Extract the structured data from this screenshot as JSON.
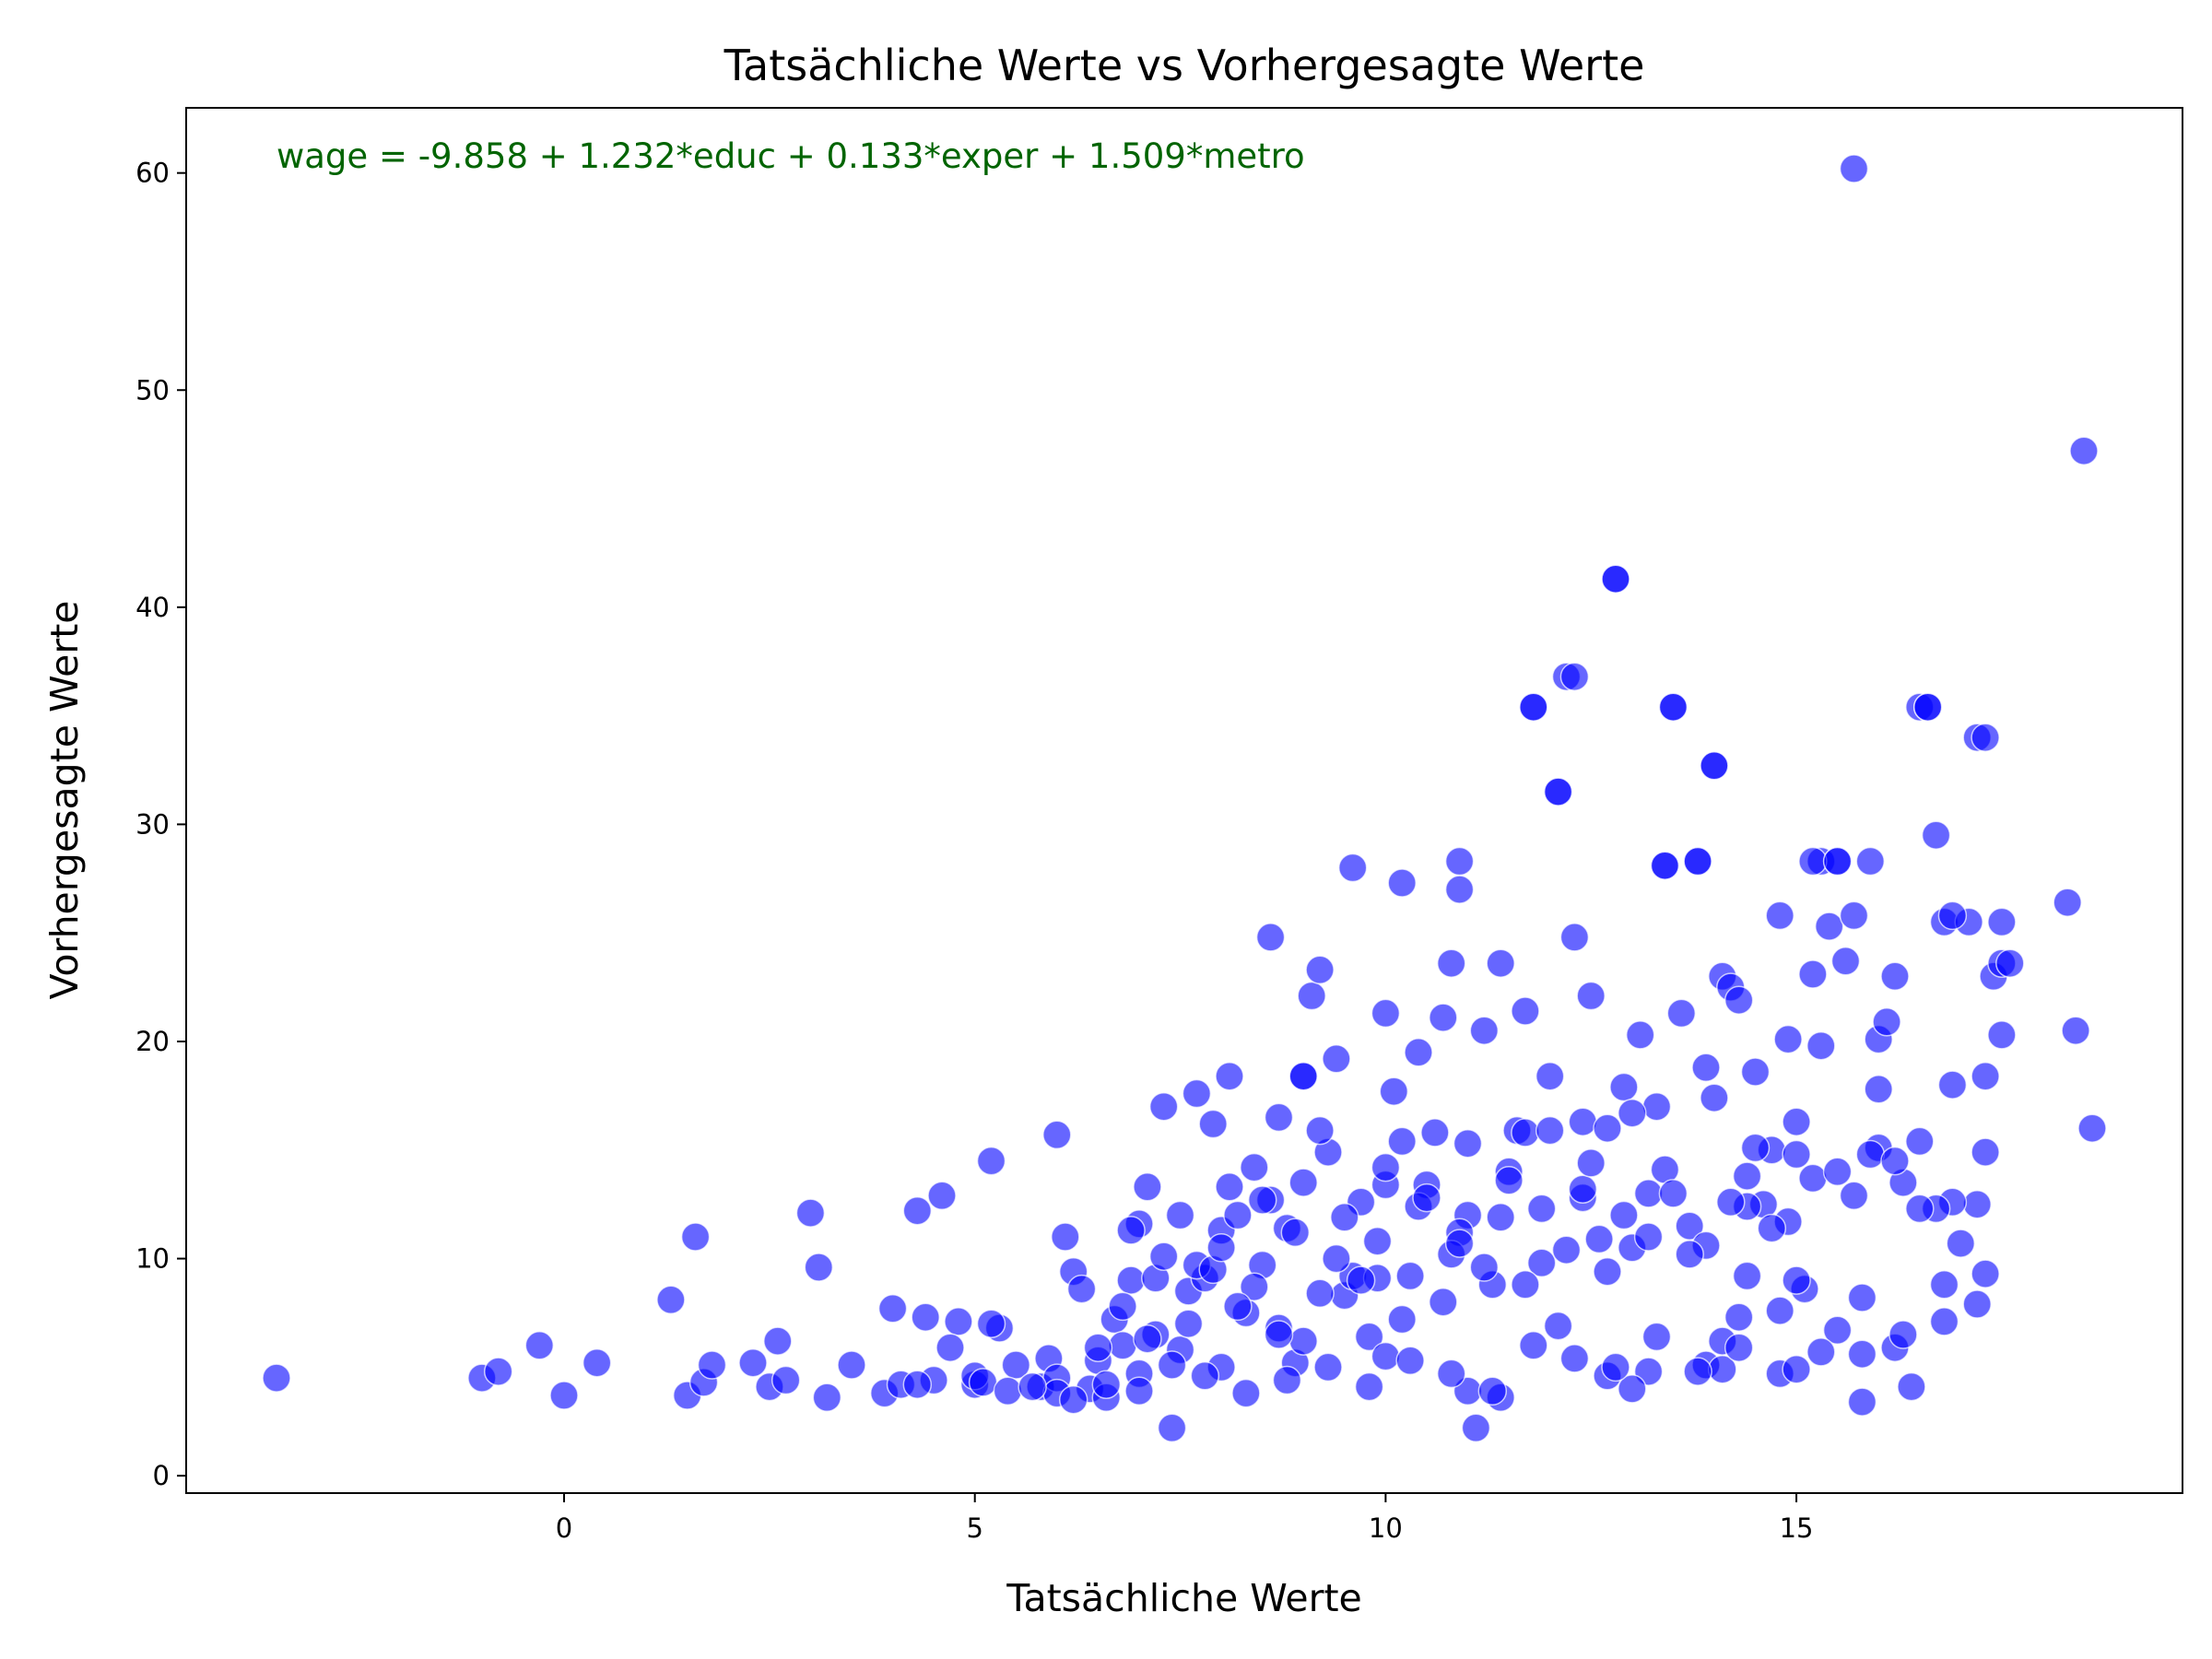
{
  "chart_data": {
    "type": "scatter",
    "title": "Tatsächliche Werte vs Vorhergesagte Werte",
    "xlabel": "Tatsächliche Werte",
    "ylabel": "Vorhergesagte Werte",
    "annotation": "wage = -9.858 + 1.232*educ + 0.133*exper + 1.509*metro",
    "annotation_color": "#006400",
    "marker_color": "#0000ff",
    "marker_opacity": 0.6,
    "xlim": [
      -4.6,
      19.7
    ],
    "ylim": [
      -0.8,
      63
    ],
    "xticks": [
      0,
      5,
      10,
      15
    ],
    "yticks": [
      0,
      10,
      20,
      30,
      40,
      50,
      60
    ],
    "grid": false,
    "legend": "none",
    "x": [
      -3.5,
      -1.0,
      -0.8,
      -0.3,
      0.0,
      0.4,
      1.3,
      1.5,
      1.6,
      1.7,
      1.8,
      2.3,
      2.5,
      2.6,
      2.7,
      3.0,
      3.1,
      3.2,
      3.5,
      3.9,
      4.0,
      4.1,
      4.3,
      4.4,
      4.5,
      4.6,
      4.8,
      5.0,
      5.2,
      5.3,
      5.5,
      5.8,
      6.0,
      6.1,
      6.2,
      6.3,
      6.4,
      6.5,
      6.6,
      6.7,
      6.8,
      6.9,
      7.0,
      7.1,
      7.2,
      7.3,
      7.4,
      7.5,
      7.6,
      7.7,
      7.8,
      7.9,
      8.0,
      8.1,
      8.2,
      8.3,
      8.4,
      8.5,
      8.6,
      8.7,
      8.8,
      8.9,
      9.0,
      9.1,
      9.2,
      9.3,
      9.4,
      9.5,
      9.6,
      9.7,
      9.8,
      9.9,
      10.0,
      10.1,
      10.2,
      10.3,
      10.4,
      10.5,
      10.6,
      10.7,
      10.8,
      10.9,
      11.0,
      11.1,
      11.2,
      11.3,
      11.4,
      11.5,
      11.6,
      11.7,
      11.8,
      11.9,
      12.0,
      12.1,
      12.2,
      12.3,
      12.4,
      12.5,
      12.6,
      12.7,
      12.8,
      12.9,
      13.0,
      13.1,
      13.2,
      13.3,
      13.4,
      13.5,
      13.6,
      13.7,
      13.8,
      13.9,
      14.0,
      14.1,
      14.2,
      14.3,
      14.4,
      14.5,
      14.6,
      14.7,
      14.8,
      14.9,
      15.0,
      15.1,
      15.2,
      15.3,
      15.4,
      15.5,
      15.6,
      15.7,
      15.8,
      15.9,
      16.0,
      16.1,
      16.2,
      16.3,
      16.5,
      16.6,
      16.7,
      16.8,
      16.9,
      17.0,
      17.1,
      17.2,
      17.3,
      17.4,
      17.5,
      18.3,
      18.4,
      18.6,
      18.5,
      15.7,
      12.8,
      12.3,
      11.8,
      13.5,
      14.0,
      16.6,
      17.3,
      12.1,
      13.4,
      13.8,
      15.2,
      15.5,
      15.3,
      16.9,
      17.5,
      17.2,
      16.0,
      9.6,
      10.0,
      10.2,
      10.9,
      10.8,
      10.9,
      8.7,
      9.0,
      9.2,
      7.2,
      7.0,
      5.2,
      4.7,
      4.3,
      5.9,
      6.0,
      8.6,
      8.1,
      7.7,
      11.4,
      11.7,
      12.4,
      12.7,
      13.2,
      13.9,
      14.1,
      14.3,
      14.8,
      15.0,
      15.8,
      16.2,
      16.4,
      16.8,
      16.9,
      17.6,
      17.5,
      17.2,
      17.3,
      16.7,
      16.5,
      15.9,
      15.5,
      15.0,
      14.4,
      14.1,
      13.0,
      12.1,
      11.0,
      10.0,
      9.0,
      8.0,
      7.0,
      6.0,
      5.0,
      5.1,
      5.4,
      5.7,
      6.2,
      6.6,
      7.4,
      7.8,
      8.3,
      8.8,
      9.3,
      9.8,
      10.3,
      10.8,
      11.3,
      11.8,
      12.3,
      12.8,
      13.3,
      13.8,
      14.3,
      14.8,
      15.3,
      15.8,
      16.3,
      16.8,
      17.3,
      6.8,
      7.3,
      7.9,
      8.4,
      8.9,
      9.4,
      9.9,
      10.4,
      10.9,
      11.4,
      11.9,
      12.4,
      12.9,
      13.4,
      13.9,
      14.4,
      14.9,
      6.5,
      7.1,
      7.6,
      8.2,
      8.7,
      9.2,
      9.7,
      10.2,
      10.7,
      11.2,
      11.7,
      12.2,
      12.7,
      13.2,
      13.7,
      14.2,
      14.7,
      15.2,
      15.7,
      16.2,
      6.9,
      7.5,
      8.0,
      8.5,
      9.0,
      9.5,
      10.0,
      10.5,
      11.0,
      11.5,
      12.0,
      12.5,
      13.0,
      13.5,
      14.0,
      14.5,
      15.0,
      15.5,
      16.0,
      16.5
    ],
    "y": [
      4.5,
      4.5,
      4.8,
      6.0,
      3.7,
      5.2,
      8.1,
      3.7,
      11.0,
      4.3,
      5.1,
      5.2,
      4.1,
      6.2,
      4.4,
      12.1,
      9.6,
      3.6,
      5.1,
      3.8,
      7.7,
      4.2,
      12.2,
      7.3,
      4.4,
      12.9,
      7.1,
      4.2,
      14.5,
      6.8,
      5.1,
      4.1,
      15.7,
      11.0,
      9.4,
      8.6,
      4.0,
      5.3,
      3.6,
      7.2,
      6.0,
      9.0,
      4.7,
      13.3,
      6.5,
      17.0,
      2.2,
      5.8,
      8.5,
      17.6,
      9.1,
      16.2,
      11.3,
      18.4,
      12.0,
      7.5,
      14.2,
      9.7,
      24.8,
      6.8,
      11.4,
      5.2,
      18.4,
      22.1,
      23.3,
      14.9,
      19.2,
      8.3,
      28.0,
      12.6,
      6.4,
      10.8,
      21.3,
      17.7,
      27.3,
      9.2,
      19.5,
      13.4,
      15.8,
      21.1,
      23.6,
      28.3,
      12.0,
      2.2,
      20.5,
      8.8,
      23.6,
      14.0,
      15.9,
      21.4,
      35.4,
      12.3,
      18.4,
      31.5,
      36.8,
      24.8,
      16.3,
      22.1,
      10.9,
      16.0,
      41.3,
      17.9,
      10.5,
      20.3,
      13.0,
      17.0,
      28.1,
      35.4,
      21.3,
      11.5,
      28.3,
      18.8,
      32.7,
      23.0,
      22.5,
      21.9,
      9.2,
      18.6,
      12.5,
      15.0,
      25.8,
      20.1,
      14.8,
      8.6,
      23.1,
      28.3,
      25.3,
      28.3,
      23.7,
      25.8,
      3.4,
      28.3,
      20.1,
      20.9,
      23.0,
      13.5,
      35.4,
      35.4,
      29.5,
      25.5,
      18.0,
      10.7,
      25.5,
      34.0,
      18.4,
      23.0,
      25.5,
      26.4,
      20.5,
      16.0,
      47.2,
      60.2,
      41.3,
      36.8,
      35.4,
      35.4,
      32.7,
      35.4,
      34.0,
      31.5,
      28.1,
      28.3,
      28.3,
      28.3,
      19.8,
      25.8,
      23.6,
      12.5,
      15.1,
      9.2,
      13.4,
      15.4,
      11.2,
      10.2,
      27.0,
      16.5,
      18.4,
      15.9,
      9.1,
      11.6,
      7.0,
      5.9,
      4.2,
      5.4,
      4.5,
      12.7,
      13.3,
      9.7,
      3.6,
      15.8,
      12.8,
      4.6,
      4.8,
      5.1,
      4.9,
      7.3,
      4.7,
      4.9,
      5.6,
      5.9,
      4.1,
      7.1,
      12.6,
      23.6,
      20.3,
      7.9,
      14.9,
      12.3,
      15.4,
      14.8,
      6.7,
      9.0,
      12.4,
      6.2,
      4.0,
      6.9,
      3.9,
      5.5,
      6.2,
      5.0,
      3.9,
      3.8,
      4.6,
      4.3,
      3.9,
      4.1,
      3.5,
      4.2,
      5.1,
      4.6,
      3.8,
      4.4,
      5.0,
      4.1,
      5.3,
      4.7,
      3.9,
      6.0,
      5.4,
      5.0,
      6.4,
      4.8,
      5.9,
      7.6,
      5.7,
      8.2,
      6.5,
      8.8,
      9.3,
      7.8,
      10.1,
      9.5,
      8.7,
      11.2,
      10.0,
      9.1,
      12.4,
      10.7,
      11.9,
      9.8,
      13.2,
      12.0,
      14.1,
      10.6,
      13.8,
      11.7,
      5.9,
      6.3,
      7.0,
      7.8,
      6.5,
      8.4,
      9.0,
      7.2,
      8.0,
      9.6,
      8.8,
      10.4,
      9.4,
      11.0,
      10.2,
      12.6,
      11.4,
      13.7,
      12.9,
      14.5,
      11.3,
      12.0,
      10.5,
      12.7,
      13.5,
      11.9,
      14.2,
      12.8,
      15.3,
      13.6,
      15.9,
      14.4,
      16.7,
      13.0,
      17.4,
      15.1,
      16.3,
      14.0,
      17.8,
      12.3
    ]
  }
}
